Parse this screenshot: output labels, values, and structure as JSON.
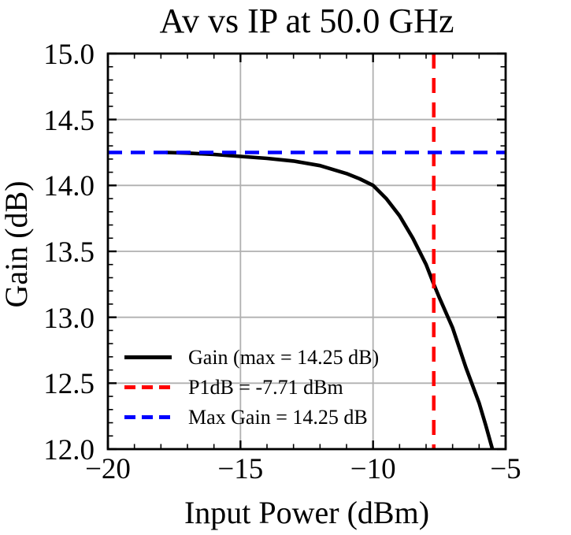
{
  "chart_data": {
    "type": "line",
    "title": "Av vs IP at 50.0 GHz",
    "xlabel": "Input Power (dBm)",
    "ylabel": "Gain (dB)",
    "xlim": [
      -20,
      -5
    ],
    "ylim": [
      12.0,
      15.0
    ],
    "xticks": [
      -20,
      -15,
      -10,
      -5
    ],
    "xtick_labels": [
      "−20",
      "−15",
      "−10",
      "−5"
    ],
    "yticks": [
      15.0,
      14.5,
      14.0,
      13.5,
      13.0,
      12.5,
      12.0
    ],
    "ytick_labels": [
      "15.0",
      "14.5",
      "14.0",
      "13.5",
      "13.0",
      "12.5",
      "12.0"
    ],
    "minor_x_step": 1,
    "minor_y_step": 0.1,
    "grid": true,
    "grid_color": "#b0b0b0",
    "axis_color": "#000000",
    "series": [
      {
        "name": "Gain (max = 14.25 dB)",
        "color": "#000000",
        "style": "solid",
        "x": [
          -17.8,
          -17,
          -16,
          -15,
          -14,
          -13,
          -12,
          -11,
          -10.5,
          -10,
          -9.5,
          -9,
          -8.5,
          -8,
          -7.71,
          -7.5,
          -7,
          -6.5,
          -6,
          -5.75,
          -5.5
        ],
        "y": [
          14.25,
          14.245,
          14.235,
          14.22,
          14.205,
          14.185,
          14.15,
          14.09,
          14.05,
          14.0,
          13.9,
          13.77,
          13.6,
          13.4,
          13.25,
          13.15,
          12.92,
          12.62,
          12.35,
          12.18,
          12.0
        ]
      }
    ],
    "vline": {
      "x": -7.71,
      "color": "#ff0000",
      "style": "dashed",
      "label": "P1dB = -7.71 dBm"
    },
    "hline": {
      "y": 14.25,
      "color": "#0000ff",
      "style": "dashed",
      "label": "Max Gain = 14.25 dB"
    },
    "max_gain_db": 14.25,
    "p1db_dbm": -7.71,
    "legend": {
      "position": "lower left",
      "items": [
        {
          "label": "Gain (max = 14.25 dB)",
          "color": "#000000",
          "style": "solid"
        },
        {
          "label": "P1dB = -7.71 dBm",
          "color": "#ff0000",
          "style": "dashed"
        },
        {
          "label": "Max Gain = 14.25 dB",
          "color": "#0000ff",
          "style": "dashed"
        }
      ]
    }
  }
}
